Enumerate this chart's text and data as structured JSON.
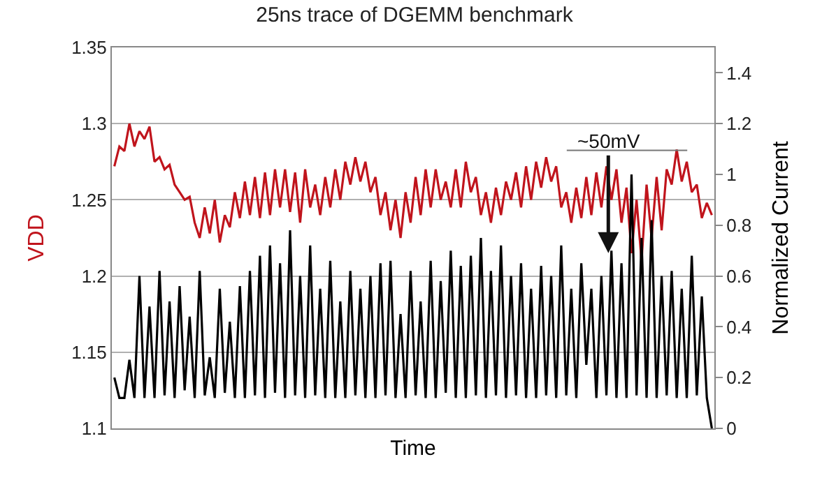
{
  "chart_data": {
    "type": "line",
    "title": "25ns trace of DGEMM benchmark",
    "xlabel": "Time",
    "ylabel": "VDD",
    "y2label": "Normalized Current",
    "categories": [
      null,
      null,
      null,
      null,
      null,
      null,
      null,
      null,
      null,
      null,
      null,
      null,
      null,
      null,
      null,
      null,
      null,
      null,
      null,
      null,
      null,
      null,
      null,
      null,
      null,
      null,
      null,
      null,
      null,
      null,
      null,
      null,
      null,
      null,
      null,
      null,
      null,
      null,
      null,
      null,
      null,
      null,
      null,
      null,
      null,
      null,
      null,
      null,
      null,
      null,
      null,
      null,
      null,
      null,
      null,
      null,
      null,
      null,
      null,
      null,
      null,
      null,
      null,
      null,
      null,
      null,
      null,
      null,
      null,
      null,
      null,
      null,
      null,
      null,
      null,
      null,
      null,
      null,
      null,
      null,
      null,
      null,
      null,
      null,
      null,
      null,
      null,
      null,
      null,
      null,
      null,
      null,
      null,
      null,
      null,
      null,
      null,
      null,
      null,
      null,
      null,
      null,
      null,
      null,
      null,
      null,
      null,
      null,
      null,
      null,
      null,
      null,
      null,
      null,
      null,
      null,
      null,
      null,
      null,
      null
    ],
    "series": [
      {
        "color": "#c0141c",
        "values": [
          1.272,
          1.285,
          1.282,
          1.3,
          1.285,
          1.295,
          1.29,
          1.298,
          1.275,
          1.278,
          1.27,
          1.273,
          1.26,
          1.255,
          1.25,
          1.252,
          1.235,
          1.225,
          1.245,
          1.228,
          1.25,
          1.222,
          1.24,
          1.232,
          1.255,
          1.238,
          1.262,
          1.24,
          1.265,
          1.238,
          1.268,
          1.24,
          1.27,
          1.245,
          1.27,
          1.242,
          1.268,
          1.235,
          1.27,
          1.245,
          1.26,
          1.24,
          1.265,
          1.245,
          1.27,
          1.25,
          1.275,
          1.26,
          1.278,
          1.262,
          1.275,
          1.255,
          1.265,
          1.24,
          1.255,
          1.23,
          1.25,
          1.225,
          1.255,
          1.235,
          1.265,
          1.24,
          1.27,
          1.245,
          1.27,
          1.25,
          1.262,
          1.245,
          1.27,
          1.245,
          1.275,
          1.255,
          1.265,
          1.24,
          1.255,
          1.235,
          1.258,
          1.24,
          1.262,
          1.25,
          1.268,
          1.245,
          1.272,
          1.25,
          1.275,
          1.258,
          1.278,
          1.262,
          1.272,
          1.245,
          1.255,
          1.235,
          1.258,
          1.238,
          1.265,
          1.24,
          1.268,
          1.245,
          1.272,
          1.25,
          1.27,
          1.235,
          1.258,
          1.215,
          1.25,
          1.21,
          1.26,
          1.225,
          1.265,
          1.23,
          1.27,
          1.26,
          1.283,
          1.262,
          1.275,
          1.255,
          1.26,
          1.238,
          1.248,
          1.24
        ]
      },
      {
        "color": "#000000",
        "axis": "y2",
        "values": [
          0.2,
          0.12,
          0.12,
          0.27,
          0.12,
          0.6,
          0.12,
          0.48,
          0.12,
          0.62,
          0.13,
          0.5,
          0.12,
          0.56,
          0.15,
          0.44,
          0.12,
          0.62,
          0.13,
          0.28,
          0.12,
          0.55,
          0.14,
          0.42,
          0.12,
          0.56,
          0.12,
          0.62,
          0.13,
          0.68,
          0.12,
          0.72,
          0.14,
          0.65,
          0.12,
          0.78,
          0.13,
          0.6,
          0.12,
          0.72,
          0.13,
          0.55,
          0.12,
          0.66,
          0.12,
          0.5,
          0.12,
          0.62,
          0.13,
          0.55,
          0.12,
          0.6,
          0.12,
          0.65,
          0.13,
          0.66,
          0.12,
          0.45,
          0.12,
          0.62,
          0.13,
          0.5,
          0.12,
          0.66,
          0.12,
          0.58,
          0.14,
          0.7,
          0.12,
          0.64,
          0.12,
          0.68,
          0.13,
          0.75,
          0.12,
          0.62,
          0.13,
          0.72,
          0.12,
          0.6,
          0.13,
          0.65,
          0.12,
          0.55,
          0.12,
          0.64,
          0.13,
          0.6,
          0.12,
          0.72,
          0.13,
          0.55,
          0.12,
          0.65,
          0.25,
          0.55,
          0.12,
          0.6,
          0.13,
          0.7,
          0.12,
          0.65,
          0.12,
          1.0,
          0.13,
          0.75,
          0.12,
          0.82,
          0.12,
          0.6,
          0.13,
          0.62,
          0.12,
          0.55,
          0.12,
          0.68,
          0.13,
          0.52,
          0.12,
          0.0
        ]
      }
    ],
    "annotations": [
      "~50mV"
    ],
    "ylim": [
      1.1,
      1.35
    ],
    "yticks": [
      1.1,
      1.15,
      1.2,
      1.25,
      1.3,
      1.35
    ],
    "y2lim": [
      0,
      1.5
    ],
    "y2ticks": [
      0,
      0.2,
      0.4,
      0.6,
      0.8,
      1,
      1.2,
      1.4
    ],
    "grid": "y",
    "marker": "none",
    "line_style": "solid"
  }
}
